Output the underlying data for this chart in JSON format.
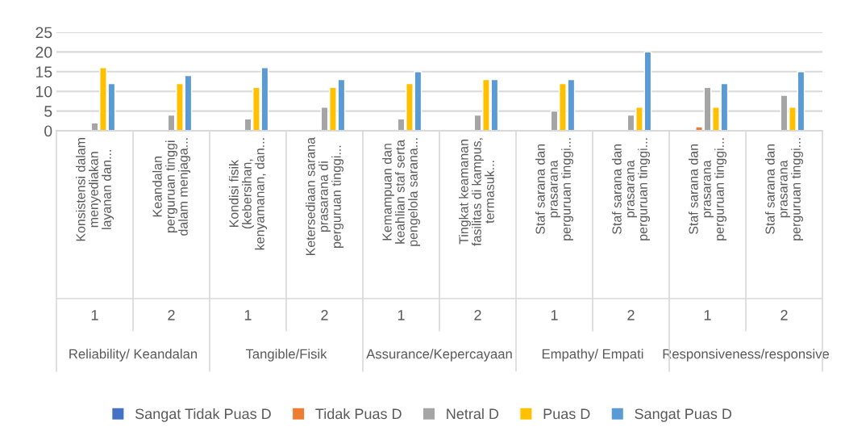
{
  "chart_data": {
    "type": "bar",
    "categories": [
      "Konsistensi dalam\nmenyediakan\nlayanan dan...",
      "Keandalan\nperguruan tinggi\ndalam menjaga...",
      "Kondisi fisik\n(kebersihan,\nkenyamanan, dan...",
      "Ketersediaan sarana\nprasarana di\nperguruan tinggi...",
      "Kemampuan dan\nkeahlian staf serta\npengelola sarana...",
      "Tingkat keamanan\nfasilitas di kampus,\ntermasuk...",
      "Staf sarana dan\nprasarana\nperguruan tinggi...",
      "Staf sarana dan\nprasarana\nperguruan tinggi...",
      "Staf sarana dan\nprasarana\nperguruan tinggi...",
      "Staf sarana dan\nprasarana\nperguruan tinggi..."
    ],
    "series": [
      {
        "name": "Sangat Tidak Puas D",
        "color": "#4472c4",
        "values": [
          null,
          null,
          null,
          null,
          null,
          null,
          null,
          null,
          null,
          null
        ]
      },
      {
        "name": "Tidak Puas D",
        "color": "#ed7d31",
        "values": [
          null,
          null,
          null,
          null,
          null,
          null,
          null,
          null,
          1,
          null
        ]
      },
      {
        "name": "Netral D",
        "color": "#a5a5a5",
        "values": [
          2,
          4,
          3,
          6,
          3,
          4,
          5,
          4,
          11,
          9
        ]
      },
      {
        "name": "Puas D",
        "color": "#ffc000",
        "values": [
          16,
          12,
          11,
          11,
          12,
          13,
          12,
          6,
          6,
          6
        ]
      },
      {
        "name": "Sangat Puas D",
        "color": "#5b9bd5",
        "values": [
          12,
          14,
          16,
          13,
          15,
          13,
          13,
          20,
          12,
          15
        ]
      }
    ],
    "annotations": [
      "1",
      "2",
      "1",
      "2",
      "1",
      "2",
      "1",
      "2",
      "1",
      "2",
      "Reliability/ Keandalan",
      "Tangible/Fisik",
      "Assurance/Kepercayaan",
      "Empathy/ Empati",
      "Responsiveness/responsive"
    ],
    "ylim": [
      0,
      25
    ],
    "yticks": [
      0,
      5,
      10,
      15,
      20,
      25
    ],
    "grid": "y",
    "legend": "bottom"
  }
}
